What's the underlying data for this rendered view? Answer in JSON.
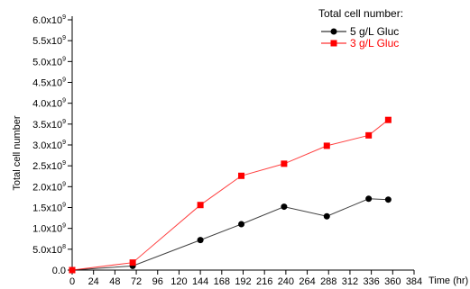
{
  "chart_data": {
    "type": "line",
    "title": "",
    "xlabel": "Time (hr)",
    "ylabel": "Total cell number",
    "xlim": [
      0,
      384
    ],
    "ylim": [
      0,
      6000000000
    ],
    "x_ticks": [
      0,
      24,
      48,
      72,
      96,
      120,
      144,
      168,
      192,
      216,
      240,
      264,
      288,
      312,
      336,
      360,
      384
    ],
    "x_tick_labels": [
      "0",
      "24",
      "48",
      "72",
      "96",
      "120",
      "144",
      "168",
      "192",
      "216",
      "240",
      "264",
      "288",
      "312",
      "336",
      "360",
      "384"
    ],
    "y_ticks": [
      0,
      500000000,
      1000000000,
      1500000000,
      2000000000,
      2500000000,
      3000000000,
      3500000000,
      4000000000,
      4500000000,
      5000000000,
      5500000000,
      6000000000
    ],
    "y_tick_labels": [
      {
        "m": "0.0",
        "e": ""
      },
      {
        "m": "5.0x10",
        "e": "8"
      },
      {
        "m": "1.0x10",
        "e": "9"
      },
      {
        "m": "1.5x10",
        "e": "9"
      },
      {
        "m": "2.0x10",
        "e": "9"
      },
      {
        "m": "2.5x10",
        "e": "9"
      },
      {
        "m": "3.0x10",
        "e": "9"
      },
      {
        "m": "3.5x10",
        "e": "9"
      },
      {
        "m": "4.0x10",
        "e": "9"
      },
      {
        "m": "4.5x10",
        "e": "9"
      },
      {
        "m": "5.0x10",
        "e": "9"
      },
      {
        "m": "5.5x10",
        "e": "9"
      },
      {
        "m": "6.0x10",
        "e": "9"
      }
    ],
    "grid": false,
    "legend": {
      "title": "Total cell number:",
      "position": "top-right"
    },
    "series": [
      {
        "name": "5 g/L Gluc",
        "color": "#000000",
        "marker": "circle",
        "x": [
          0,
          68,
          144,
          190,
          238,
          286,
          333,
          355
        ],
        "y": [
          0,
          100000000,
          720000000,
          1100000000,
          1520000000,
          1290000000,
          1710000000,
          1690000000
        ]
      },
      {
        "name": "3 g/L Gluc",
        "color": "#ff0000",
        "marker": "square",
        "x": [
          0,
          68,
          144,
          190,
          238,
          286,
          333,
          355
        ],
        "y": [
          0,
          180000000,
          1560000000,
          2260000000,
          2550000000,
          2980000000,
          3230000000,
          3600000000
        ]
      }
    ]
  }
}
